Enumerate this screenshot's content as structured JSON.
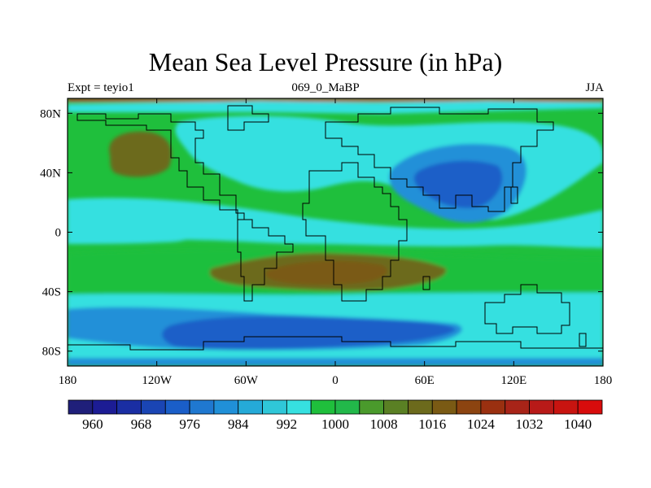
{
  "title": "Mean Sea Level Pressure (in hPa)",
  "subtitle_left": "Expt = teyio1",
  "subtitle_center": "069_0_MaBP",
  "subtitle_right": "JJA",
  "map": {
    "projection": "cylindrical-equidistant",
    "lon_range": [
      -180,
      180
    ],
    "lat_range": [
      -90,
      90
    ],
    "x_ticks": [
      {
        "value": -180,
        "label": "180"
      },
      {
        "value": -120,
        "label": "120W"
      },
      {
        "value": -60,
        "label": "60W"
      },
      {
        "value": 0,
        "label": "0"
      },
      {
        "value": 60,
        "label": "60E"
      },
      {
        "value": 120,
        "label": "120E"
      },
      {
        "value": 180,
        "label": "180"
      }
    ],
    "y_ticks": [
      {
        "value": 80,
        "label": "80N"
      },
      {
        "value": 40,
        "label": "40N"
      },
      {
        "value": 0,
        "label": "0"
      },
      {
        "value": -40,
        "label": "40S"
      },
      {
        "value": -80,
        "label": "80S"
      }
    ]
  },
  "colorbar": {
    "colors": [
      "#1f1f7a",
      "#1c1c94",
      "#1a2ea3",
      "#1a45b4",
      "#1a5ec8",
      "#1f78d0",
      "#2090d8",
      "#25aad8",
      "#2fc7d8",
      "#36e0e0",
      "#1fbf3c",
      "#22b84a",
      "#4a9a2c",
      "#5a8024",
      "#6c6a1c",
      "#7a5a14",
      "#8c4410",
      "#9a3010",
      "#a82418",
      "#b81a18",
      "#c81410",
      "#d80c0c"
    ],
    "labels": [
      "960",
      "968",
      "976",
      "984",
      "992",
      "1000",
      "1008",
      "1016",
      "1024",
      "1032",
      "1040"
    ]
  },
  "colors": {
    "ocean_low": "#1a5ec8",
    "low_mid": "#2090d8",
    "cyan": "#36e0e0",
    "green": "#1fbf3c",
    "olive": "#5a6a24",
    "high": "#7a5a14",
    "border_red": "#b81a18"
  }
}
